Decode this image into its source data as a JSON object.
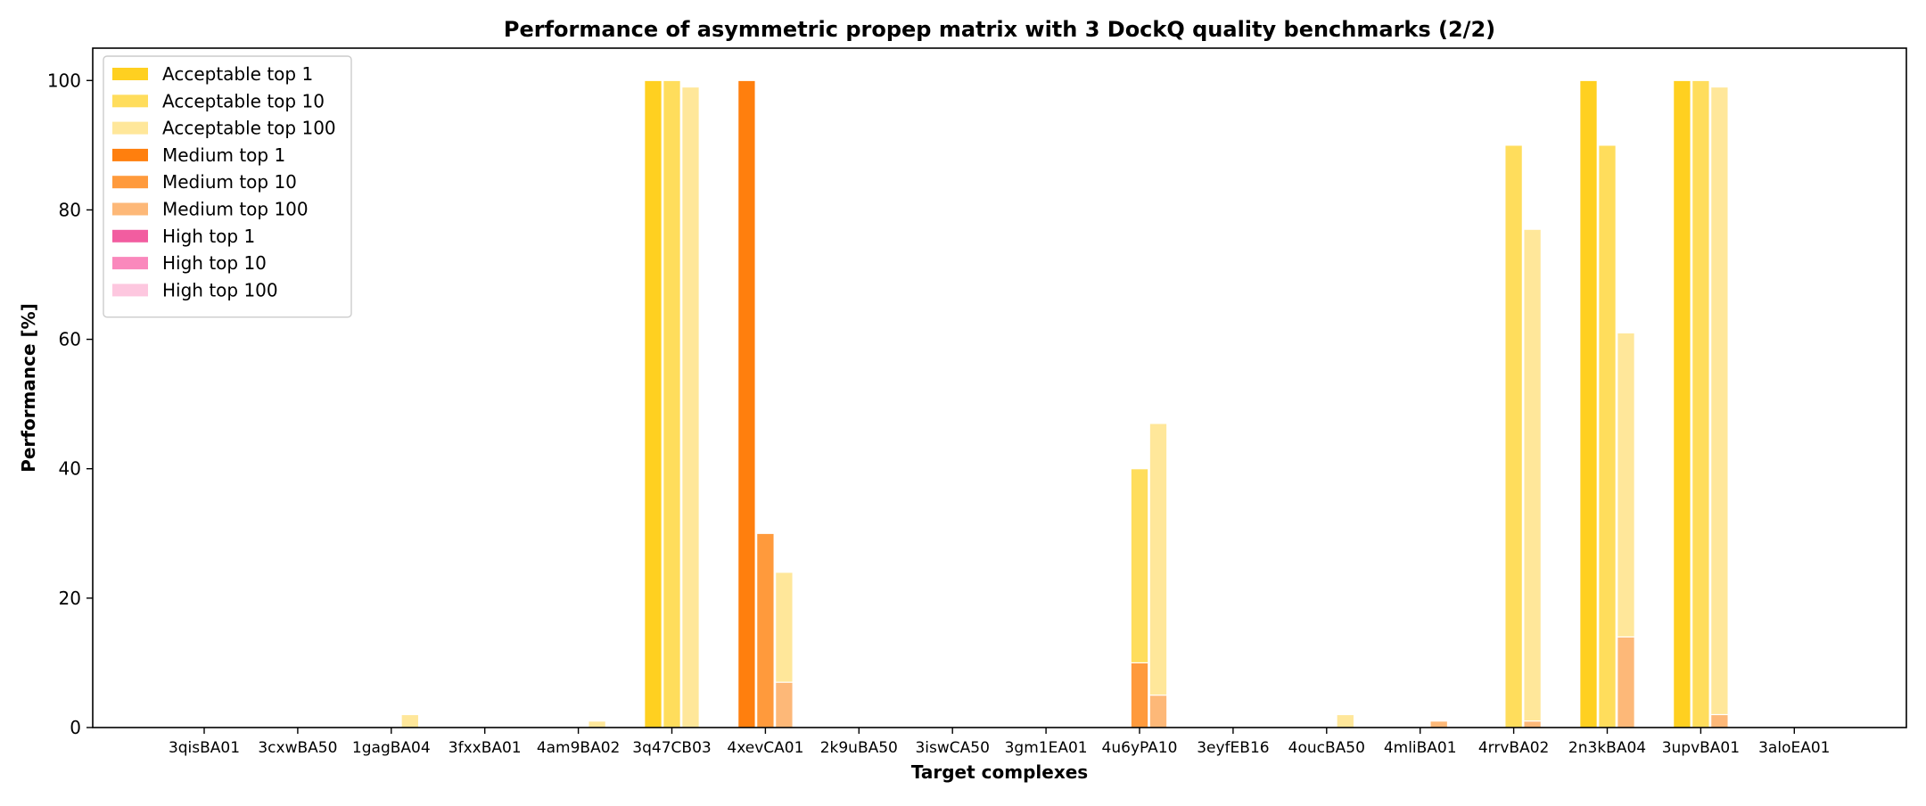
{
  "chart_data": {
    "type": "bar",
    "title": "Performance of asymmetric propep matrix with 3 DockQ quality benchmarks (2/2)",
    "xlabel": "Target complexes",
    "ylabel": "Performance [%]",
    "ylim": [
      0,
      105
    ],
    "yticks": [
      0,
      20,
      40,
      60,
      80,
      100
    ],
    "grid": false,
    "legend_position": "top-left",
    "categories": [
      "3qisBA01",
      "3cxwBA50",
      "1gagBA04",
      "3fxxBA01",
      "4am9BA02",
      "3q47CB03",
      "4xevCA01",
      "2k9uBA50",
      "3iswCA50",
      "3gm1EA01",
      "4u6yPA10",
      "3eyfEB16",
      "4oucBA50",
      "4mliBA01",
      "4rrvBA02",
      "2n3kBA04",
      "3upvBA01",
      "3aloEA01"
    ],
    "series": [
      {
        "name": "Acceptable top 1",
        "color": "#FFD020",
        "group": "top 1",
        "values": [
          0,
          0,
          0,
          0,
          0,
          100,
          0,
          0,
          0,
          0,
          0,
          0,
          0,
          0,
          0,
          100,
          100,
          0
        ]
      },
      {
        "name": "Acceptable top 10",
        "color": "#FFDD5C",
        "group": "top 10",
        "values": [
          0,
          0,
          0,
          0,
          0,
          100,
          0,
          0,
          0,
          0,
          40,
          0,
          0,
          0,
          90,
          90,
          100,
          0
        ]
      },
      {
        "name": "Acceptable top 100",
        "color": "#FFE79A",
        "group": "top 100",
        "values": [
          0,
          0,
          2,
          0,
          1,
          99,
          24,
          0,
          0,
          0,
          47,
          0,
          2,
          0,
          77,
          61,
          99,
          0
        ]
      },
      {
        "name": "Medium top 1",
        "color": "#FF7F0E",
        "group": "top 1",
        "values": [
          0,
          0,
          0,
          0,
          0,
          0,
          100,
          0,
          0,
          0,
          0,
          0,
          0,
          0,
          0,
          0,
          0,
          0
        ]
      },
      {
        "name": "Medium top 10",
        "color": "#FF9A3C",
        "group": "top 10",
        "values": [
          0,
          0,
          0,
          0,
          0,
          0,
          30,
          0,
          0,
          0,
          10,
          0,
          0,
          0,
          0,
          0,
          0,
          0
        ]
      },
      {
        "name": "Medium top 100",
        "color": "#FDB878",
        "group": "top 100",
        "values": [
          0,
          0,
          0,
          0,
          0,
          0,
          7,
          0,
          0,
          0,
          5,
          0,
          0,
          1,
          1,
          14,
          2,
          0
        ]
      },
      {
        "name": "High top 1",
        "color": "#F25DA0",
        "group": "top 1",
        "values": [
          0,
          0,
          0,
          0,
          0,
          0,
          0,
          0,
          0,
          0,
          0,
          0,
          0,
          0,
          0,
          0,
          0,
          0
        ]
      },
      {
        "name": "High top 10",
        "color": "#FA88BC",
        "group": "top 10",
        "values": [
          0,
          0,
          0,
          0,
          0,
          0,
          0,
          0,
          0,
          0,
          0,
          0,
          0,
          0,
          0,
          0,
          0,
          0
        ]
      },
      {
        "name": "High top 100",
        "color": "#FDC7DF",
        "group": "top 100",
        "values": [
          0,
          0,
          0,
          0,
          0,
          0,
          0,
          0,
          0,
          0,
          0,
          0,
          0,
          0,
          0,
          0,
          0,
          0
        ]
      }
    ]
  }
}
